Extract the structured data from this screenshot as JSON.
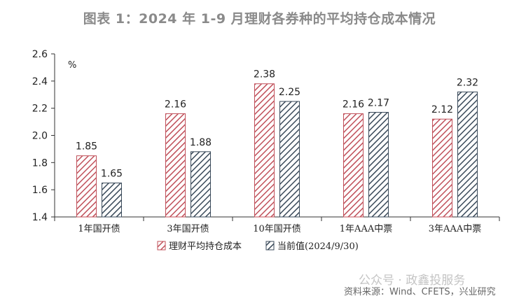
{
  "chart_data": {
    "type": "bar",
    "title": "图表 1：2024 年 1-9 月理财各券种的平均持仓成本情况",
    "unit": "%",
    "categories": [
      "1年国开债",
      "3年国开债",
      "10年国开债",
      "1年AAA中票",
      "3年AAA中票"
    ],
    "series": [
      {
        "name": "理财平均持仓成本",
        "values": [
          1.85,
          2.16,
          2.38,
          2.16,
          2.12
        ],
        "color": "#c0505a"
      },
      {
        "name": "当前值(2024/9/30)",
        "values": [
          1.65,
          1.88,
          2.25,
          2.17,
          2.32
        ],
        "color": "#3a4a5a"
      }
    ],
    "data_labels": [
      [
        "1.85",
        "2.16",
        "2.38",
        "2.16",
        "2.12"
      ],
      [
        "1.65",
        "1.88",
        "2.25",
        "2.17",
        "2.32"
      ]
    ],
    "ylim": [
      1.4,
      2.6
    ],
    "yticks": [
      1.4,
      1.6,
      1.8,
      2.0,
      2.2,
      2.4,
      2.6
    ],
    "ytick_labels": [
      "1.4",
      "1.6",
      "1.8",
      "2.0",
      "2.2",
      "2.4",
      "2.6"
    ],
    "grid": false,
    "legend_position": "bottom"
  },
  "watermark": "公众号 · 政鑫投服务",
  "source": "资料来源：Wind、CFETS，兴业研究"
}
